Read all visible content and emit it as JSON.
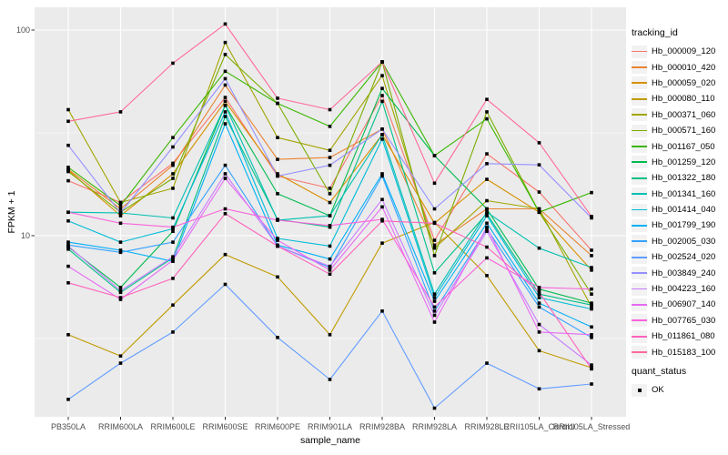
{
  "figure": {
    "background": "#FFFFFF",
    "panel_background": "#EBEBEB",
    "grid_color": "#FFFFFF",
    "tick_color": "#333333",
    "tick_label_color": "#4D4D4D"
  },
  "legend": {
    "tracking_title": "tracking_id",
    "quant_title": "quant_status",
    "quant_items": [
      {
        "label": "OK",
        "key": "black-square"
      }
    ]
  },
  "chart_data": {
    "type": "line",
    "title": "",
    "xlabel": "sample_name",
    "ylabel": "FPKM + 1",
    "y_scale": "log10",
    "ylim": [
      1.3,
      130
    ],
    "y_ticks": [
      100,
      10
    ],
    "y_tick_labels": [
      "100",
      "10"
    ],
    "y_minor_gridlines": [
      31.62,
      3.162
    ],
    "grid": true,
    "legend_position": "right",
    "point_style": {
      "shape": "filled-square",
      "color": "#000000",
      "size": 3.6,
      "quant_status": "OK"
    },
    "x_categories": [
      "PB350LA",
      "RRIM600LA",
      "RRIM600LE",
      "RRIM600SE",
      "RRIM600PE",
      "RRIM901LA",
      "RRIM928BA",
      "RRIM928LA",
      "RRIM928LE",
      "RRII105LA_Control",
      "RRII105LA_Stressed"
    ],
    "series": [
      {
        "tracking_id": "Hb_000009_120",
        "color": "#F8766D",
        "values": [
          18.5,
          14.5,
          22.5,
          47,
          19.5,
          17,
          48,
          9.5,
          25,
          16.3,
          8.5
        ]
      },
      {
        "tracking_id": "Hb_000010_420",
        "color": "#EA8331",
        "values": [
          21,
          13.5,
          22,
          54,
          23.5,
          24,
          33,
          9,
          13.5,
          13.5,
          8
        ]
      },
      {
        "tracking_id": "Hb_000059_020",
        "color": "#D89000",
        "values": [
          20.8,
          12.5,
          20,
          45,
          20,
          14.5,
          31,
          11.5,
          18.8,
          13,
          6.8
        ]
      },
      {
        "tracking_id": "Hb_000080_110",
        "color": "#C09B00",
        "values": [
          3.3,
          2.6,
          4.6,
          8.1,
          6.3,
          3.3,
          9.2,
          11.6,
          6.4,
          2.76,
          2.28
        ]
      },
      {
        "tracking_id": "Hb_000371_060",
        "color": "#A3A500",
        "values": [
          41,
          14.5,
          17,
          87,
          30,
          26,
          60,
          8.7,
          14.8,
          13.5,
          4.5
        ]
      },
      {
        "tracking_id": "Hb_000571_160",
        "color": "#7CAE00",
        "values": [
          20.5,
          13,
          19,
          76,
          44,
          16,
          70,
          8,
          40,
          13,
          5.2
        ]
      },
      {
        "tracking_id": "Hb_001167_050",
        "color": "#39B600",
        "values": [
          21.5,
          14,
          30,
          63,
          44,
          34,
          70,
          24.5,
          37,
          13,
          16.2
        ]
      },
      {
        "tracking_id": "Hb_001259_120",
        "color": "#00BB4E",
        "values": [
          8.8,
          5.6,
          10.5,
          43,
          16,
          12.5,
          52,
          24.5,
          13.5,
          5.5,
          4.7
        ]
      },
      {
        "tracking_id": "Hb_001322_180",
        "color": "#00C087",
        "values": [
          8.6,
          5.3,
          7.8,
          38,
          12,
          11,
          45,
          6.6,
          12.8,
          5.2,
          4.6
        ]
      },
      {
        "tracking_id": "Hb_001341_160",
        "color": "#00C0B2",
        "values": [
          13,
          12.9,
          12.2,
          43,
          11.9,
          12.5,
          31,
          5.2,
          13,
          8.7,
          7.0
        ]
      },
      {
        "tracking_id": "Hb_001414_040",
        "color": "#00BCD8",
        "values": [
          11.8,
          9.3,
          10.8,
          40,
          9.7,
          8.9,
          29.5,
          5.0,
          12.5,
          5.0,
          4.4
        ]
      },
      {
        "tracking_id": "Hb_001799_190",
        "color": "#00B0F6",
        "values": [
          9.3,
          8.5,
          7.5,
          35,
          9.0,
          7.7,
          20,
          4.8,
          11.5,
          4.7,
          3.6
        ]
      },
      {
        "tracking_id": "Hb_002005_030",
        "color": "#35A2FF",
        "values": [
          9.0,
          8.3,
          9.3,
          22,
          8.9,
          7.0,
          19.5,
          4.3,
          10.8,
          4.5,
          3.2
        ]
      },
      {
        "tracking_id": "Hb_002524_020",
        "color": "#619CFF",
        "values": [
          1.6,
          2.4,
          3.4,
          5.8,
          3.2,
          2.0,
          4.3,
          1.45,
          2.4,
          1.8,
          1.9
        ]
      },
      {
        "tracking_id": "Hb_003849_240",
        "color": "#9590FF",
        "values": [
          27.5,
          12.9,
          27,
          58,
          19.5,
          22,
          33,
          13.5,
          22.4,
          22.1,
          12.2
        ]
      },
      {
        "tracking_id": "Hb_004223_160",
        "color": "#C77CFF",
        "values": [
          8.9,
          5.4,
          7.9,
          20,
          8.9,
          7.1,
          15,
          4.1,
          10.5,
          3.7,
          2.35
        ]
      },
      {
        "tracking_id": "Hb_006907_140",
        "color": "#E76BF3",
        "values": [
          7.1,
          4.9,
          7.6,
          19,
          9.5,
          6.8,
          13.8,
          3.8,
          11.0,
          3.4,
          3.3
        ]
      },
      {
        "tracking_id": "Hb_007765_030",
        "color": "#FA62DB",
        "values": [
          13.0,
          11.5,
          11.0,
          13.5,
          11.9,
          11.2,
          12.0,
          4.5,
          7.8,
          5.6,
          5.5
        ]
      },
      {
        "tracking_id": "Hb_011861_080",
        "color": "#FF62BC",
        "values": [
          5.9,
          5.0,
          6.2,
          12.8,
          8.9,
          6.5,
          11.8,
          11.5,
          8.8,
          5.3,
          2.25
        ]
      },
      {
        "tracking_id": "Hb_015183_100",
        "color": "#FF6A98",
        "values": [
          36,
          40,
          69,
          107,
          46.6,
          41,
          70,
          18,
          46,
          28.3,
          12.4
        ]
      }
    ]
  }
}
